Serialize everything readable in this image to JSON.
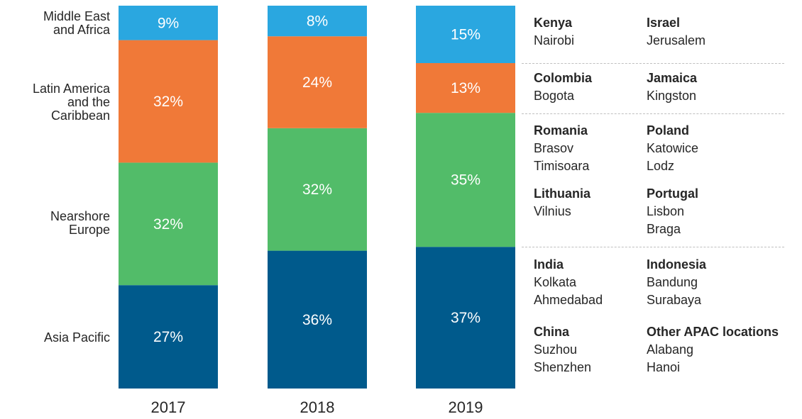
{
  "chart_data": {
    "type": "bar",
    "stacked": true,
    "normalized_percent": true,
    "categories": [
      "2017",
      "2018",
      "2019"
    ],
    "series": [
      {
        "name": "Asia Pacific",
        "values": [
          27,
          36,
          37
        ],
        "color": "#005A8C"
      },
      {
        "name": "Nearshore Europe",
        "values": [
          32,
          32,
          35
        ],
        "color": "#52BC69"
      },
      {
        "name": "Latin America and the Caribbean",
        "values": [
          32,
          24,
          13
        ],
        "color": "#F07938"
      },
      {
        "name": "Middle East and Africa",
        "values": [
          9,
          8,
          15
        ],
        "color": "#2AA7E0"
      }
    ],
    "data_labels": [
      [
        "27%",
        "36%",
        "37%"
      ],
      [
        "32%",
        "32%",
        "35%"
      ],
      [
        "32%",
        "24%",
        "13%"
      ],
      [
        "9%",
        "8%",
        "15%"
      ]
    ],
    "legend_placement": "left",
    "grid": false
  },
  "region_labels": [
    "Middle East\nand Africa",
    "Latin America\nand the\nCaribbean",
    "Nearshore\nEurope",
    "Asia Pacific"
  ],
  "locations": {
    "middle_east_africa": [
      {
        "country": "Kenya",
        "cities": [
          "Nairobi"
        ]
      },
      {
        "country": "Israel",
        "cities": [
          "Jerusalem"
        ]
      }
    ],
    "latin_america": [
      {
        "country": "Colombia",
        "cities": [
          "Bogota"
        ]
      },
      {
        "country": "Jamaica",
        "cities": [
          "Kingston"
        ]
      }
    ],
    "nearshore_europe": [
      {
        "country": "Romania",
        "cities": [
          "Brasov",
          "Timisoara"
        ]
      },
      {
        "country": "Poland",
        "cities": [
          "Katowice",
          "Lodz"
        ]
      },
      {
        "country": "Lithuania",
        "cities": [
          "Vilnius"
        ]
      },
      {
        "country": "Portugal",
        "cities": [
          "Lisbon",
          "Braga"
        ]
      }
    ],
    "asia_pacific": [
      {
        "country": "India",
        "cities": [
          "Kolkata",
          "Ahmedabad"
        ]
      },
      {
        "country": "Indonesia",
        "cities": [
          "Bandung",
          "Surabaya"
        ]
      },
      {
        "country": "China",
        "cities": [
          "Suzhou",
          "Shenzhen"
        ]
      },
      {
        "country": "Other APAC locations",
        "cities": [
          "Alabang",
          "Hanoi"
        ]
      }
    ]
  }
}
